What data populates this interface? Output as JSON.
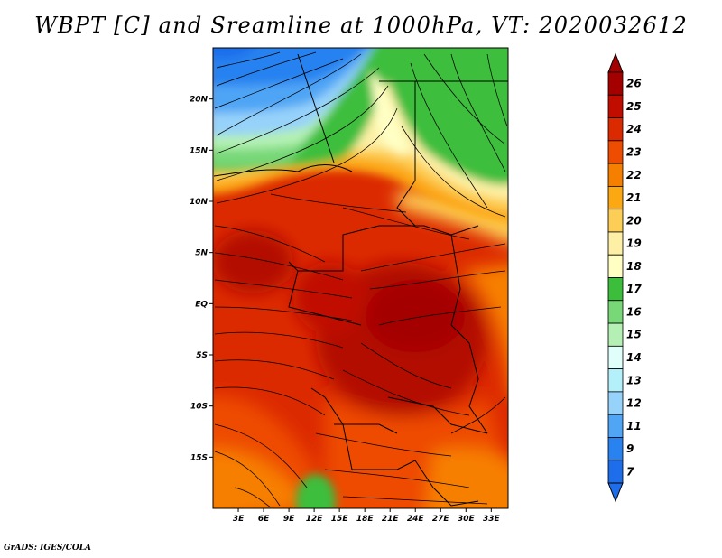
{
  "title": "WBPT [C] and Sreamline at 1000hPa, VT: 2020032612",
  "credit": "GrADS: IGES/COLA",
  "map": {
    "lon_range": [
      0,
      35
    ],
    "lat_range": [
      -20,
      25
    ],
    "lat_ticks": [
      {
        "value": 20,
        "label": "20N"
      },
      {
        "value": 15,
        "label": "15N"
      },
      {
        "value": 10,
        "label": "10N"
      },
      {
        "value": 5,
        "label": "5N"
      },
      {
        "value": 0,
        "label": "EQ"
      },
      {
        "value": -5,
        "label": "5S"
      },
      {
        "value": -10,
        "label": "10S"
      },
      {
        "value": -15,
        "label": "15S"
      }
    ],
    "lon_ticks": [
      {
        "value": 3,
        "label": "3E"
      },
      {
        "value": 6,
        "label": "6E"
      },
      {
        "value": 9,
        "label": "9E"
      },
      {
        "value": 12,
        "label": "12E"
      },
      {
        "value": 15,
        "label": "15E"
      },
      {
        "value": 18,
        "label": "18E"
      },
      {
        "value": 21,
        "label": "21E"
      },
      {
        "value": 24,
        "label": "24E"
      },
      {
        "value": 27,
        "label": "27E"
      },
      {
        "value": 30,
        "label": "30E"
      },
      {
        "value": 33,
        "label": "33E"
      }
    ]
  },
  "colorbar": {
    "labels": [
      "26",
      "25",
      "24",
      "23",
      "22",
      "21",
      "20",
      "19",
      "18",
      "17",
      "16",
      "15",
      "14",
      "13",
      "12",
      "11",
      "9",
      "7"
    ],
    "colors": [
      "#a50000",
      "#c00d00",
      "#dc2a00",
      "#ee4c00",
      "#f77f00",
      "#fca812",
      "#fdce55",
      "#fdf0a6",
      "#ffffc4",
      "#3cbe3c",
      "#78d878",
      "#b4f0b4",
      "#e1fffa",
      "#b4f0fa",
      "#96d2fa",
      "#50a5f5",
      "#2882f0",
      "#1e6eeb"
    ],
    "arrow_top_color": "#a50000",
    "arrow_bottom_color": "#1e6eeb"
  }
}
